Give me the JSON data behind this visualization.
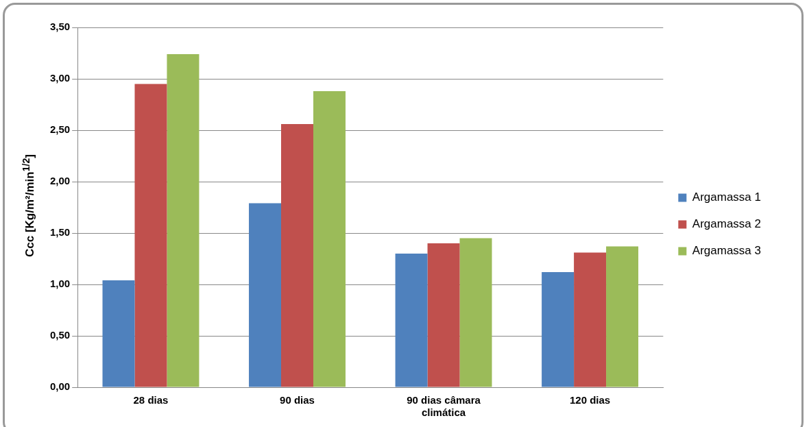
{
  "chart_data": {
    "type": "bar",
    "ylabel": "Ccc [Kg/m²/min$^{1/2}$]",
    "categories": [
      "28 dias",
      "90 dias",
      "90 dias câmara climática",
      "120 dias"
    ],
    "series": [
      {
        "name": "Argamassa 1",
        "color": "#4f81bd",
        "values": [
          1.04,
          1.79,
          1.3,
          1.12
        ]
      },
      {
        "name": "Argamassa 2",
        "color": "#c0504d",
        "values": [
          2.95,
          2.56,
          1.4,
          1.31
        ]
      },
      {
        "name": "Argamassa 3",
        "color": "#9bbb59",
        "values": [
          3.24,
          2.88,
          1.45,
          1.37
        ]
      }
    ],
    "ylim": [
      0,
      3.5
    ],
    "yticks": [
      {
        "value": 0,
        "label": "0,00"
      },
      {
        "value": 0.5,
        "label": "0,50"
      },
      {
        "value": 1,
        "label": "1,00"
      },
      {
        "value": 1.5,
        "label": "1,50"
      },
      {
        "value": 2,
        "label": "2,00"
      },
      {
        "value": 2.5,
        "label": "2,50"
      },
      {
        "value": 3,
        "label": "3,00"
      },
      {
        "value": 3.5,
        "label": "3,50"
      }
    ],
    "grid": "y",
    "legend": "right"
  }
}
